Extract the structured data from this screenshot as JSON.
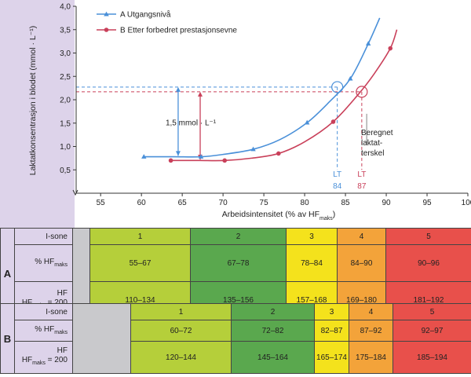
{
  "chart_data": {
    "type": "line",
    "title": "",
    "xlabel": "Arbeidsintensitet (% av HF",
    "xlabel_sub": "maks",
    "xlabel_end": ")",
    "ylabel": "Laktatkonsentrasjon i blodet (mmol · L⁻¹)",
    "xlim": [
      52,
      100
    ],
    "ylim": [
      0,
      4.0
    ],
    "x_ticks": [
      55,
      60,
      65,
      70,
      75,
      80,
      85,
      90,
      95,
      100
    ],
    "y_ticks": [
      0.5,
      1.0,
      1.5,
      2.0,
      2.5,
      3.0,
      3.5,
      4.0
    ],
    "y_tick_labels": [
      "0,5",
      "1,0",
      "1,5",
      "2,0",
      "2,5",
      "3,0",
      "3,5",
      "4,0"
    ],
    "legend_position": "top-left",
    "series": [
      {
        "name": "A Utgangsnivå",
        "color": "#4a90d9",
        "marker": "triangle",
        "points": [
          [
            60.3,
            0.78
          ],
          [
            67.3,
            0.78
          ],
          [
            73.7,
            0.94
          ],
          [
            80.3,
            1.51
          ],
          [
            85.6,
            2.45
          ],
          [
            87.8,
            3.2
          ]
        ],
        "curve": [
          [
            60.3,
            0.78
          ],
          [
            64,
            0.78
          ],
          [
            67.3,
            0.78
          ],
          [
            70,
            0.83
          ],
          [
            73.7,
            0.94
          ],
          [
            77,
            1.15
          ],
          [
            80.3,
            1.51
          ],
          [
            83,
            1.95
          ],
          [
            85.6,
            2.45
          ],
          [
            87.8,
            3.2
          ],
          [
            89.2,
            3.75
          ]
        ]
      },
      {
        "name": "B Etter forbedret prestasjonsevne",
        "color": "#c9405a",
        "marker": "circle",
        "points": [
          [
            63.6,
            0.7
          ],
          [
            70.2,
            0.7
          ],
          [
            76.8,
            0.85
          ],
          [
            83.5,
            1.53
          ],
          [
            90.5,
            3.1
          ]
        ],
        "curve": [
          [
            63.6,
            0.7
          ],
          [
            67,
            0.7
          ],
          [
            70.2,
            0.7
          ],
          [
            73.5,
            0.75
          ],
          [
            76.8,
            0.85
          ],
          [
            80,
            1.1
          ],
          [
            83.5,
            1.53
          ],
          [
            86.5,
            2.1
          ],
          [
            88.5,
            2.55
          ],
          [
            90.5,
            3.1
          ],
          [
            91.3,
            3.5
          ]
        ]
      }
    ],
    "annotations": {
      "delta_label": "1,5 mmol · L⁻¹",
      "lt_label_a": "LT",
      "lt_value_a": "84",
      "lt_label_b": "LT",
      "lt_value_b": "87",
      "threshold_label_1": "Beregnet",
      "threshold_label_2": "laktat-",
      "threshold_label_3": "terskel"
    }
  },
  "table_a": {
    "tag": "A",
    "rows": {
      "zone_label": "I-sone",
      "hf_pct_label": "% HF",
      "hf_pct_sub": "maks",
      "hf_label_1": "HF",
      "hf_label_2": "HF",
      "hf_label_2_sub": "maks",
      "hf_label_2_end": " = 200"
    },
    "zones": [
      {
        "zone": "1",
        "pct": "55–67",
        "hf": "110–134",
        "color": "#b5cf3a"
      },
      {
        "zone": "2",
        "pct": "67–78",
        "hf": "135–156",
        "color": "#5aa84e"
      },
      {
        "zone": "3",
        "pct": "78–84",
        "hf": "157–168",
        "color": "#f4e21c"
      },
      {
        "zone": "4",
        "pct": "84–90",
        "hf": "169–180",
        "color": "#f3a33a"
      },
      {
        "zone": "5",
        "pct": "90–96",
        "hf": "181–192",
        "color": "#e8504b"
      }
    ]
  },
  "table_b": {
    "tag": "B",
    "rows": {
      "zone_label": "I-sone",
      "hf_pct_label": "% HF",
      "hf_pct_sub": "maks",
      "hf_label_1": "HF",
      "hf_label_2": "HF",
      "hf_label_2_sub": "maks",
      "hf_label_2_end": " = 200"
    },
    "zones": [
      {
        "zone": "1",
        "pct": "60–72",
        "hf": "120–144",
        "color": "#b5cf3a"
      },
      {
        "zone": "2",
        "pct": "72–82",
        "hf": "145–164",
        "color": "#5aa84e"
      },
      {
        "zone": "3",
        "pct": "82–87",
        "hf": "165–174",
        "color": "#f4e21c"
      },
      {
        "zone": "4",
        "pct": "87–92",
        "hf": "175–184",
        "color": "#f3a33a"
      },
      {
        "zone": "5",
        "pct": "92–97",
        "hf": "185–194",
        "color": "#e8504b"
      }
    ]
  }
}
